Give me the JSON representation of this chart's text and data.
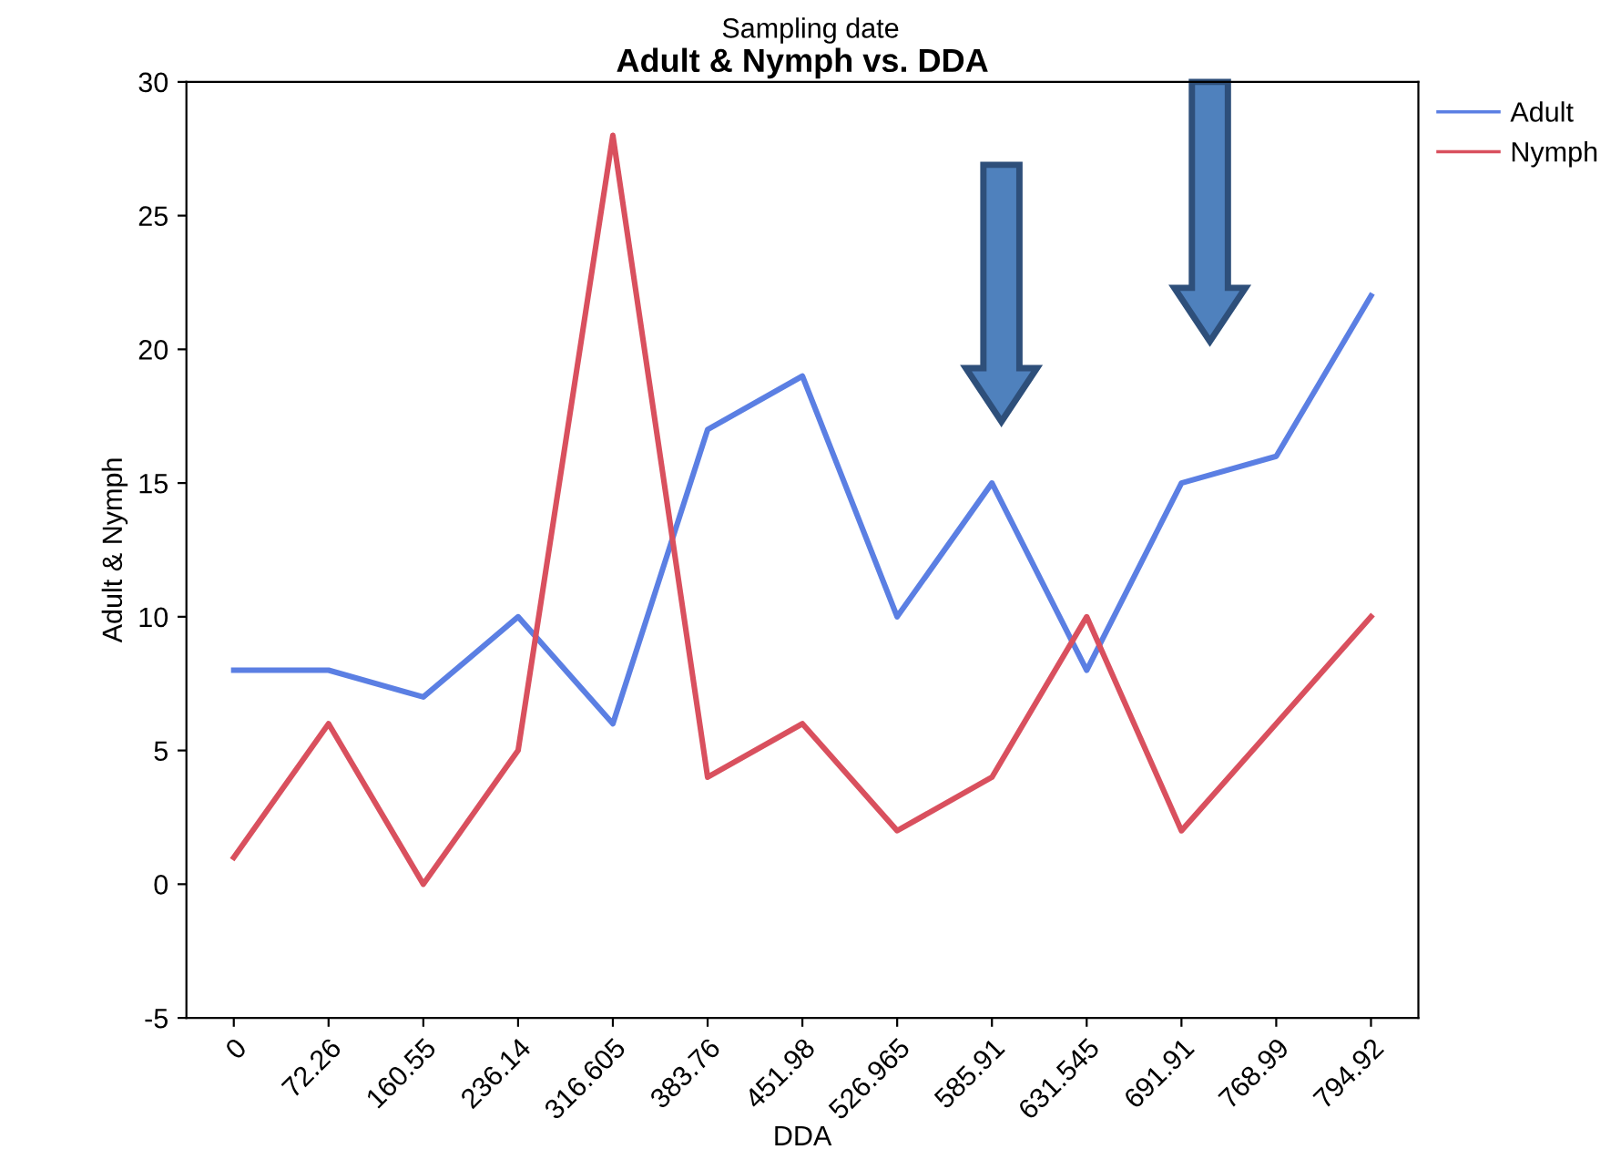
{
  "chart_data": {
    "type": "line",
    "title": "Adult & Nymph vs. DDA",
    "xlabel": "DDA",
    "ylabel": "Adult & Nymph",
    "annotations": [
      "Sampling date"
    ],
    "categories": [
      "0",
      "72.26",
      "160.55",
      "236.14",
      "316.605",
      "383.76",
      "451.98",
      "526.965",
      "585.91",
      "631.545",
      "691.91",
      "768.99",
      "794.92"
    ],
    "series": [
      {
        "name": "Adult",
        "color": "#5b7fe3",
        "values": [
          8,
          8,
          7,
          10,
          6,
          17,
          19,
          10,
          15,
          8,
          15,
          16,
          22
        ]
      },
      {
        "name": "Nymph",
        "color": "#d9505e",
        "values": [
          1,
          6,
          0,
          5,
          28,
          4,
          6,
          2,
          4,
          10,
          2,
          6,
          10
        ]
      }
    ],
    "ylim": [
      -5,
      30
    ],
    "yticks": [
      -5,
      0,
      5,
      10,
      15,
      20,
      25,
      30
    ],
    "grid": false,
    "legend": "top right",
    "marker": "none",
    "line_style": "solid"
  }
}
